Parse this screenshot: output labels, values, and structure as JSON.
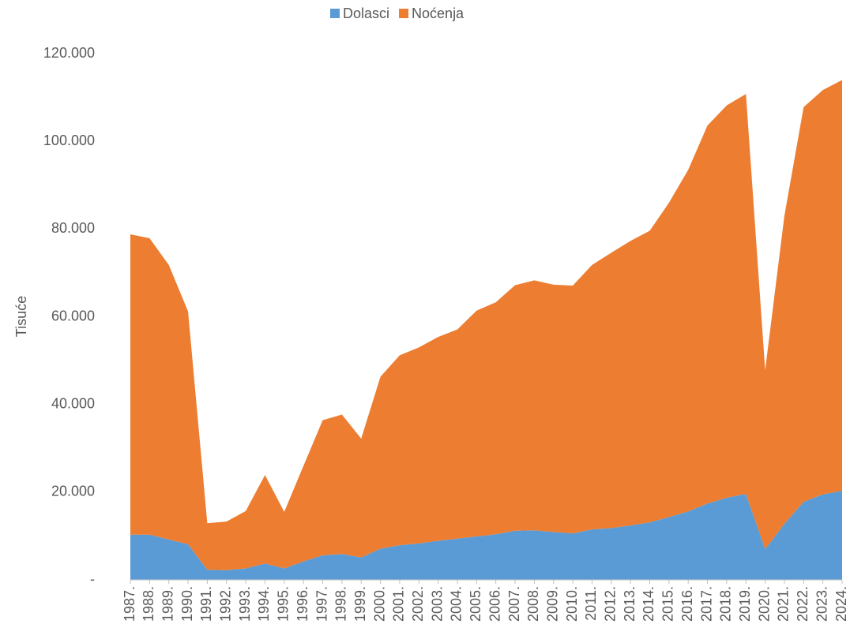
{
  "chart_data": {
    "type": "stacked_area",
    "y_label": "Tisuće",
    "categories": [
      "1987.",
      "1988.",
      "1989.",
      "1990.",
      "1991.",
      "1992.",
      "1993.",
      "1994.",
      "1995.",
      "1996.",
      "1997.",
      "1998.",
      "1999.",
      "2000.",
      "2001.",
      "2002.",
      "2003.",
      "2004.",
      "2005.",
      "2006.",
      "2007.",
      "2008.",
      "2009.",
      "2010.",
      "2011.",
      "2012.",
      "2013.",
      "2014.",
      "2015.",
      "2016.",
      "2017.",
      "2018.",
      "2019.",
      "2020.",
      "2021.",
      "2022.",
      "2023.",
      "2024."
    ],
    "series": [
      {
        "name": "Dolasci",
        "color": "#5b9bd5",
        "values": [
          10300,
          10300,
          9200,
          8100,
          2300,
          2200,
          2600,
          3700,
          2600,
          4200,
          5600,
          5900,
          5100,
          7100,
          7900,
          8300,
          8900,
          9400,
          9900,
          10400,
          11200,
          11300,
          10900,
          10600,
          11500,
          11800,
          12400,
          13100,
          14300,
          15600,
          17400,
          18700,
          19600,
          7000,
          12800,
          17800,
          19500,
          20300
        ]
      },
      {
        "name": "Noćenja",
        "color": "#ed7d31",
        "values": [
          68500,
          67600,
          62600,
          53100,
          10600,
          11100,
          13100,
          20200,
          12900,
          21800,
          30800,
          31800,
          27100,
          39200,
          43300,
          44700,
          46500,
          47700,
          51500,
          52900,
          56000,
          57000,
          56400,
          56500,
          60300,
          62800,
          64900,
          66500,
          71700,
          77900,
          86200,
          89500,
          91200,
          40800,
          70200,
          90000,
          92200,
          93700
        ]
      }
    ],
    "ylim": [
      0,
      120000
    ],
    "yticks": [
      {
        "value": 0,
        "label": "-"
      },
      {
        "value": 20000,
        "label": "20.000"
      },
      {
        "value": 40000,
        "label": "40.000"
      },
      {
        "value": 60000,
        "label": "60.000"
      },
      {
        "value": 80000,
        "label": "80.000"
      },
      {
        "value": 100000,
        "label": "100.000"
      },
      {
        "value": 120000,
        "label": "120.000"
      }
    ],
    "grid": false,
    "legend": "top"
  }
}
